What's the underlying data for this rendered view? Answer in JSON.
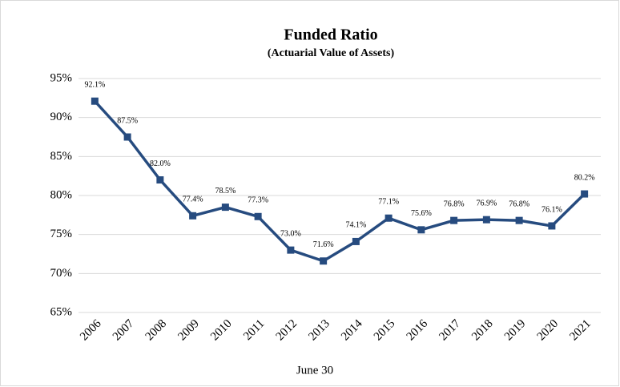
{
  "chart_data": {
    "type": "line",
    "title": "Funded Ratio",
    "subtitle": "(Actuarial Value of Assets)",
    "x_label": "June 30",
    "categories": [
      "2006",
      "2007",
      "2008",
      "2009",
      "2010",
      "2011",
      "2012",
      "2013",
      "2014",
      "2015",
      "2016",
      "2017",
      "2018",
      "2019",
      "2020",
      "2021"
    ],
    "values": [
      92.1,
      87.5,
      82.0,
      77.4,
      78.5,
      77.3,
      73.0,
      71.6,
      74.1,
      77.1,
      75.6,
      76.8,
      76.9,
      76.8,
      76.1,
      80.2
    ],
    "value_labels": [
      "92.1%",
      "87.5%",
      "82.0%",
      "77.4%",
      "78.5%",
      "77.3%",
      "73.0%",
      "71.6%",
      "74.1%",
      "77.1%",
      "75.6%",
      "76.8%",
      "76.9%",
      "76.8%",
      "76.1%",
      "80.2%"
    ],
    "color": "#264b7f",
    "ylim": [
      65,
      95
    ],
    "yticks": [
      {
        "value": 65,
        "label": "65%"
      },
      {
        "value": 70,
        "label": "70%"
      },
      {
        "value": 75,
        "label": "75%"
      },
      {
        "value": 80,
        "label": "80%"
      },
      {
        "value": 85,
        "label": "85%"
      },
      {
        "value": 90,
        "label": "90%"
      },
      {
        "value": 95,
        "label": "95%"
      }
    ],
    "grid": true
  }
}
